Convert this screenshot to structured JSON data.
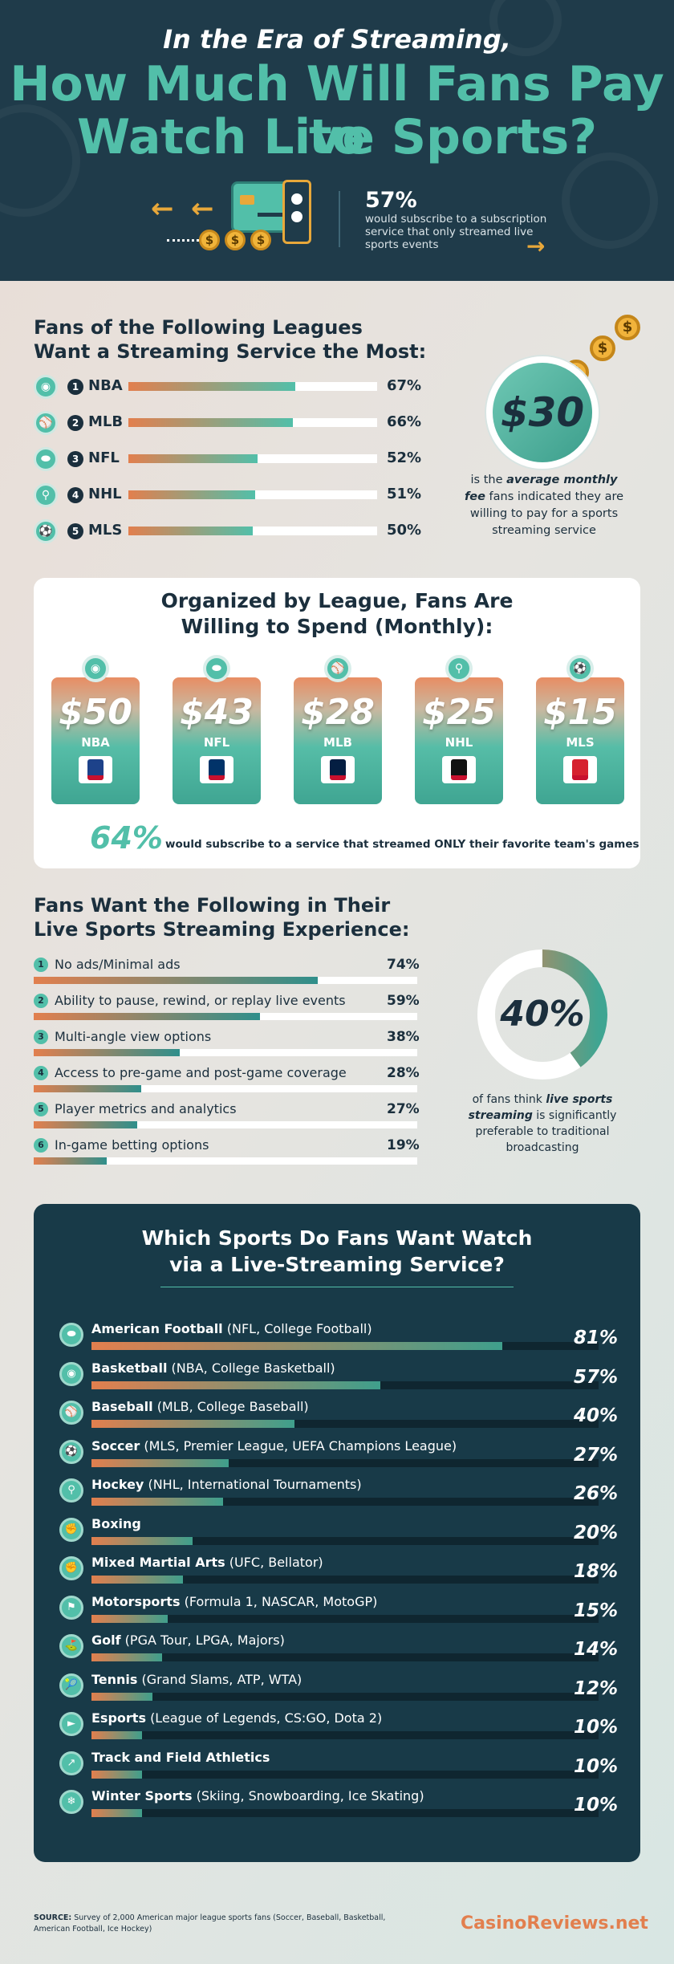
{
  "header": {
    "title_line1": "In the Era of Streaming,",
    "title_line2": "How Much Will Fans Pay to",
    "title_line3": "Watch Live Sports?",
    "stat_pct": "57%",
    "stat_text": "would subscribe to a subscription service that only streamed live sports events"
  },
  "leagues_section": {
    "title_line1": "Fans of the Following Leagues",
    "title_line2": "Want a Streaming Service the Most:",
    "items": [
      {
        "rank": "1",
        "name": "NBA",
        "pct": "67%",
        "value": 67
      },
      {
        "rank": "2",
        "name": "MLB",
        "pct": "66%",
        "value": 66
      },
      {
        "rank": "3",
        "name": "NFL",
        "pct": "52%",
        "value": 52
      },
      {
        "rank": "4",
        "name": "NHL",
        "pct": "51%",
        "value": 51
      },
      {
        "rank": "5",
        "name": "MLS",
        "pct": "50%",
        "value": 50
      }
    ],
    "badge_value": "$30",
    "badge_text_pre": "is the",
    "badge_text_em": "average monthly fee",
    "badge_text_post": "fans indicated they are willing to pay for a sports streaming service"
  },
  "spend_section": {
    "title_line1": "Organized by League, Fans Are",
    "title_line2": "Willing to Spend (Monthly):",
    "cards": [
      {
        "value": "$50",
        "league": "NBA"
      },
      {
        "value": "$43",
        "league": "NFL"
      },
      {
        "value": "$28",
        "league": "MLB"
      },
      {
        "value": "$25",
        "league": "NHL"
      },
      {
        "value": "$15",
        "league": "MLS"
      }
    ],
    "footer_pct": "64%",
    "footer_text_pre": "would subscribe to a service that streamed",
    "footer_text_em": "ONLY",
    "footer_text_post": "their favorite team's games"
  },
  "features_section": {
    "title_line1": "Fans Want the Following in Their",
    "title_line2": "Live Sports Streaming Experience:",
    "items": [
      {
        "num": "1",
        "label": "No ads/Minimal ads",
        "pct": "74%",
        "value": 74
      },
      {
        "num": "2",
        "label": "Ability to pause, rewind, or replay live events",
        "pct": "59%",
        "value": 59
      },
      {
        "num": "3",
        "label": "Multi-angle view options",
        "pct": "38%",
        "value": 38
      },
      {
        "num": "4",
        "label": "Access to pre-game and post-game coverage",
        "pct": "28%",
        "value": 28
      },
      {
        "num": "5",
        "label": "Player metrics and analytics",
        "pct": "27%",
        "value": 27
      },
      {
        "num": "6",
        "label": "In-game betting options",
        "pct": "19%",
        "value": 19
      }
    ],
    "donut_value": "40%",
    "donut_fraction": 0.4,
    "donut_text_pre": "of fans think",
    "donut_text_em": "live sports streaming",
    "donut_text_post": "is significantly preferable to traditional broadcasting"
  },
  "sports_section": {
    "title_line1": "Which Sports Do Fans Want Watch",
    "title_line2": "via a Live-Streaming Service?",
    "items": [
      {
        "sport": "American Football",
        "detail": "(NFL, College Football)",
        "pct": "81%",
        "value": 81
      },
      {
        "sport": "Basketball",
        "detail": "(NBA, College Basketball)",
        "pct": "57%",
        "value": 57
      },
      {
        "sport": "Baseball",
        "detail": " (MLB, College Baseball)",
        "pct": "40%",
        "value": 40
      },
      {
        "sport": "Soccer",
        "detail": "(MLS, Premier League, UEFA Champions League)",
        "pct": "27%",
        "value": 27
      },
      {
        "sport": "Hockey",
        "detail": "(NHL, International Tournaments)",
        "pct": "26%",
        "value": 26
      },
      {
        "sport": "Boxing",
        "detail": "",
        "pct": "20%",
        "value": 20
      },
      {
        "sport": "Mixed Martial Arts",
        "detail": "(UFC, Bellator)",
        "pct": "18%",
        "value": 18
      },
      {
        "sport": "Motorsports",
        "detail": "(Formula 1, NASCAR, MotoGP)",
        "pct": "15%",
        "value": 15
      },
      {
        "sport": "Golf",
        "detail": " (PGA Tour, LPGA, Majors)",
        "pct": "14%",
        "value": 14
      },
      {
        "sport": "Tennis",
        "detail": "(Grand Slams, ATP, WTA)",
        "pct": "12%",
        "value": 12
      },
      {
        "sport": "Esports",
        "detail": "(League of Legends, CS:GO, Dota 2)",
        "pct": "10%",
        "value": 10
      },
      {
        "sport": "Track and Field Athletics",
        "detail": "",
        "pct": "10%",
        "value": 10
      },
      {
        "sport": "Winter Sports",
        "detail": " (Skiing, Snowboarding, Ice Skating)",
        "pct": "10%",
        "value": 10
      }
    ]
  },
  "footer": {
    "source_label": "SOURCE:",
    "source_text": "Survey of 2,000 American major league sports fans (Soccer, Baseball, Basketball, American Football, Ice Hockey)",
    "brand": "CasinoReviews.net"
  },
  "colors": {
    "dark": "#1f3b4a",
    "teal": "#52bfa9",
    "orange": "#e27f4e",
    "gold": "#f1b33b"
  }
}
